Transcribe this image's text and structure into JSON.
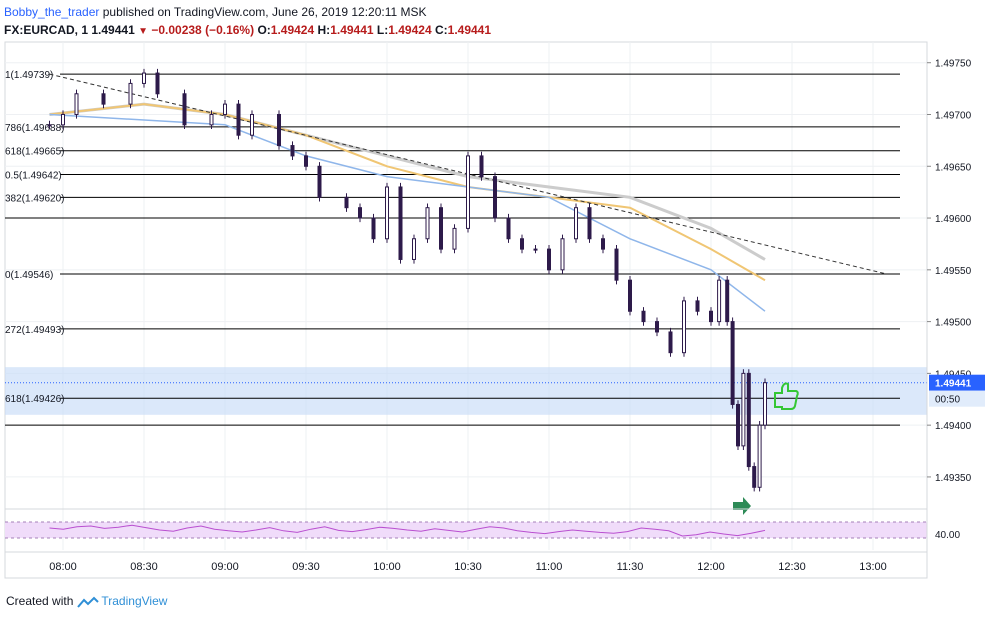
{
  "header": {
    "author": "Bobby_the_trader",
    "published": "published on TradingView.com, June 26, 2019 12:20:11 MSK",
    "symbol": "FX:EURCAD, 1",
    "last": "1.49441",
    "change": "−0.00238 (−0.16%)",
    "o_label": "O:",
    "o_value": "1.49424",
    "h_label": "H:",
    "h_value": "1.49441",
    "l_label": "L:",
    "l_value": "1.49424",
    "c_label": "C:",
    "c_value": "1.49441"
  },
  "footer": {
    "created": "Created with",
    "brand": "TradingView"
  },
  "colors": {
    "candle": "#2d1a4a",
    "fib_line": "#000000",
    "trendline": "#333333",
    "ma_fast": "#8fb6ea",
    "ma_mid": "#f0c674",
    "ma_slow": "#cccccc",
    "zone": "#c7dcf7",
    "rsi_line": "#b94fd0",
    "rsi_band": "#f0dcfa",
    "price_tag": "#2962ff",
    "thumb": "#35c735",
    "arrow": "#2e8b57"
  },
  "chart_data": {
    "type": "candlestick",
    "symbol": "FX:EURCAD",
    "interval": "1",
    "ylim": [
      1.4932,
      1.4977
    ],
    "y_ticks": [
      "1.49750",
      "1.49700",
      "1.49650",
      "1.49600",
      "1.49550",
      "1.49500",
      "1.49450",
      "1.49400",
      "1.49350"
    ],
    "x_ticks": [
      "08:00",
      "08:30",
      "09:00",
      "09:30",
      "10:00",
      "10:30",
      "11:00",
      "11:30",
      "12:00",
      "12:30",
      "13:00"
    ],
    "fib_levels": [
      {
        "label": "1(1.49739)",
        "value": 1.49739
      },
      {
        "label": "786(1.49688)",
        "value": 1.49688
      },
      {
        "label": "618(1.49665)",
        "value": 1.49665
      },
      {
        "label": "0.5(1.49642)",
        "value": 1.49642
      },
      {
        "label": "382(1.49620)",
        "value": 1.4962
      },
      {
        "label": "",
        "value": 1.496
      },
      {
        "label": "0(1.49546)",
        "value": 1.49546
      },
      {
        "label": "272(1.49493)",
        "value": 1.49493
      },
      {
        "label": "618(1.49426)",
        "value": 1.49426
      },
      {
        "label": "",
        "value": 1.494
      }
    ],
    "zone": [
      1.4941,
      1.49456
    ],
    "last_price_label": "1.49441",
    "countdown": "00:50",
    "price_path": [
      [
        "07:55",
        1.4969
      ],
      [
        "08:00",
        1.497
      ],
      [
        "08:05",
        1.4972
      ],
      [
        "08:15",
        1.4971
      ],
      [
        "08:25",
        1.4973
      ],
      [
        "08:30",
        1.4974
      ],
      [
        "08:35",
        1.4972
      ],
      [
        "08:45",
        1.4969
      ],
      [
        "08:55",
        1.497
      ],
      [
        "09:00",
        1.4971
      ],
      [
        "09:05",
        1.4968
      ],
      [
        "09:10",
        1.497
      ],
      [
        "09:20",
        1.4967
      ],
      [
        "09:25",
        1.4966
      ],
      [
        "09:30",
        1.4965
      ],
      [
        "09:35",
        1.4962
      ],
      [
        "09:45",
        1.4961
      ],
      [
        "09:50",
        1.496
      ],
      [
        "09:55",
        1.4958
      ],
      [
        "10:00",
        1.4963
      ],
      [
        "10:05",
        1.4956
      ],
      [
        "10:10",
        1.4958
      ],
      [
        "10:15",
        1.4961
      ],
      [
        "10:20",
        1.4957
      ],
      [
        "10:25",
        1.4959
      ],
      [
        "10:30",
        1.4966
      ],
      [
        "10:35",
        1.4964
      ],
      [
        "10:40",
        1.496
      ],
      [
        "10:45",
        1.4958
      ],
      [
        "10:50",
        1.4957
      ],
      [
        "10:55",
        1.4957
      ],
      [
        "11:00",
        1.4955
      ],
      [
        "11:05",
        1.4958
      ],
      [
        "11:10",
        1.4961
      ],
      [
        "11:15",
        1.4958
      ],
      [
        "11:20",
        1.4957
      ],
      [
        "11:25",
        1.4954
      ],
      [
        "11:30",
        1.4951
      ],
      [
        "11:35",
        1.495
      ],
      [
        "11:40",
        1.4949
      ],
      [
        "11:45",
        1.4947
      ],
      [
        "11:50",
        1.4952
      ],
      [
        "11:55",
        1.4951
      ],
      [
        "12:00",
        1.495
      ],
      [
        "12:03",
        1.4954
      ],
      [
        "12:06",
        1.495
      ],
      [
        "12:08",
        1.4942
      ],
      [
        "12:10",
        1.4938
      ],
      [
        "12:12",
        1.4945
      ],
      [
        "12:14",
        1.4936
      ],
      [
        "12:16",
        1.4934
      ],
      [
        "12:18",
        1.494
      ],
      [
        "12:20",
        1.49441
      ]
    ],
    "ma_fast": [
      [
        "07:55",
        1.497
      ],
      [
        "09:00",
        1.4969
      ],
      [
        "09:30",
        1.4966
      ],
      [
        "10:00",
        1.4964
      ],
      [
        "10:30",
        1.4963
      ],
      [
        "11:00",
        1.4962
      ],
      [
        "11:30",
        1.4958
      ],
      [
        "12:00",
        1.4955
      ],
      [
        "12:20",
        1.4951
      ]
    ],
    "ma_mid": [
      [
        "07:55",
        1.497
      ],
      [
        "08:30",
        1.4971
      ],
      [
        "09:00",
        1.497
      ],
      [
        "09:30",
        1.4968
      ],
      [
        "10:00",
        1.4965
      ],
      [
        "10:30",
        1.4963
      ],
      [
        "11:00",
        1.4962
      ],
      [
        "11:30",
        1.4961
      ],
      [
        "12:00",
        1.4957
      ],
      [
        "12:20",
        1.4954
      ]
    ],
    "ma_slow": [
      [
        "07:55",
        1.497
      ],
      [
        "08:30",
        1.4971
      ],
      [
        "09:00",
        1.497
      ],
      [
        "09:30",
        1.4968
      ],
      [
        "10:00",
        1.4966
      ],
      [
        "10:30",
        1.4964
      ],
      [
        "11:00",
        1.4963
      ],
      [
        "11:30",
        1.4962
      ],
      [
        "12:00",
        1.4959
      ],
      [
        "12:20",
        1.4956
      ]
    ],
    "trendline": [
      [
        "07:55",
        1.49739
      ],
      [
        "13:05",
        1.49546
      ]
    ],
    "rsi": {
      "ylim": [
        0,
        100
      ],
      "tick": "40.00",
      "values": [
        55,
        52,
        58,
        60,
        54,
        57,
        62,
        56,
        50,
        47,
        55,
        60,
        52,
        48,
        45,
        50,
        56,
        48,
        44,
        52,
        58,
        49,
        46,
        51,
        57,
        54,
        50,
        47,
        53,
        49,
        45,
        52,
        58,
        55,
        48,
        44,
        41,
        46,
        50,
        47,
        44,
        42,
        46,
        55,
        52,
        48,
        35,
        38,
        45,
        40,
        36,
        42,
        49
      ]
    }
  }
}
